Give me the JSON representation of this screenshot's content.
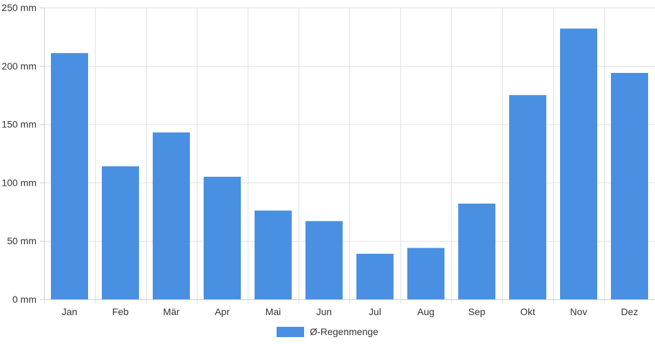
{
  "chart_data": {
    "type": "bar",
    "categories": [
      "Jan",
      "Feb",
      "Mär",
      "Apr",
      "Mai",
      "Jun",
      "Jul",
      "Aug",
      "Sep",
      "Okt",
      "Nov",
      "Dez"
    ],
    "series": [
      {
        "name": "Ø-Regenmenge",
        "values": [
          211,
          114,
          143,
          105,
          76,
          67,
          39,
          44,
          82,
          175,
          232,
          194
        ],
        "color": "#4a90e2"
      }
    ],
    "ylim": [
      0,
      250
    ],
    "yticks": [
      0,
      50,
      100,
      150,
      200,
      250
    ],
    "ytick_labels": [
      "0 mm",
      "50 mm",
      "100 mm",
      "150 mm",
      "200 mm",
      "250 mm"
    ],
    "grid": true,
    "legend_position": "bottom-center"
  }
}
